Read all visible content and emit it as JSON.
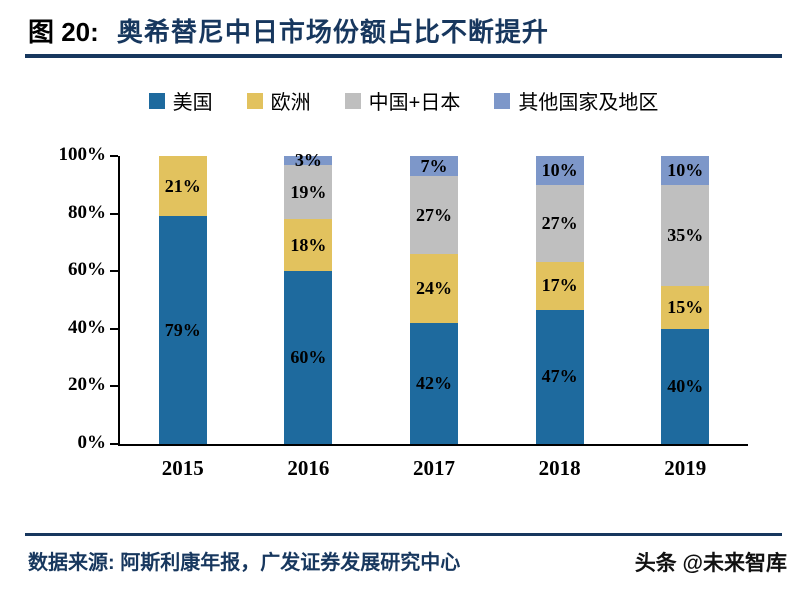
{
  "header": {
    "figure_label": "图 20:",
    "title": "奥希替尼中日市场份额占比不断提升"
  },
  "chart_data": {
    "type": "bar",
    "stacked": true,
    "unit": "%",
    "categories": [
      "2015",
      "2016",
      "2017",
      "2018",
      "2019"
    ],
    "series": [
      {
        "name": "美国",
        "color": "#1e6a9e",
        "values": [
          79,
          60,
          42,
          47,
          40
        ]
      },
      {
        "name": "欧洲",
        "color": "#e2c25e",
        "values": [
          21,
          18,
          24,
          17,
          15
        ]
      },
      {
        "name": "中国+日本",
        "color": "#bfbfbf",
        "values": [
          0,
          19,
          27,
          27,
          35
        ]
      },
      {
        "name": "其他国家及地区",
        "color": "#7d97c9",
        "values": [
          0,
          3,
          7,
          10,
          10
        ]
      }
    ],
    "yticks": [
      "0%",
      "20%",
      "40%",
      "60%",
      "80%",
      "100%"
    ],
    "ylim": [
      0,
      100
    ],
    "grid": false,
    "legend_position": "top"
  },
  "footer": {
    "source": "数据来源: 阿斯利康年报，广发证券发展研究中心",
    "watermark": "头条 @未来智库"
  },
  "colors": {
    "accent_navy": "#17375e"
  }
}
